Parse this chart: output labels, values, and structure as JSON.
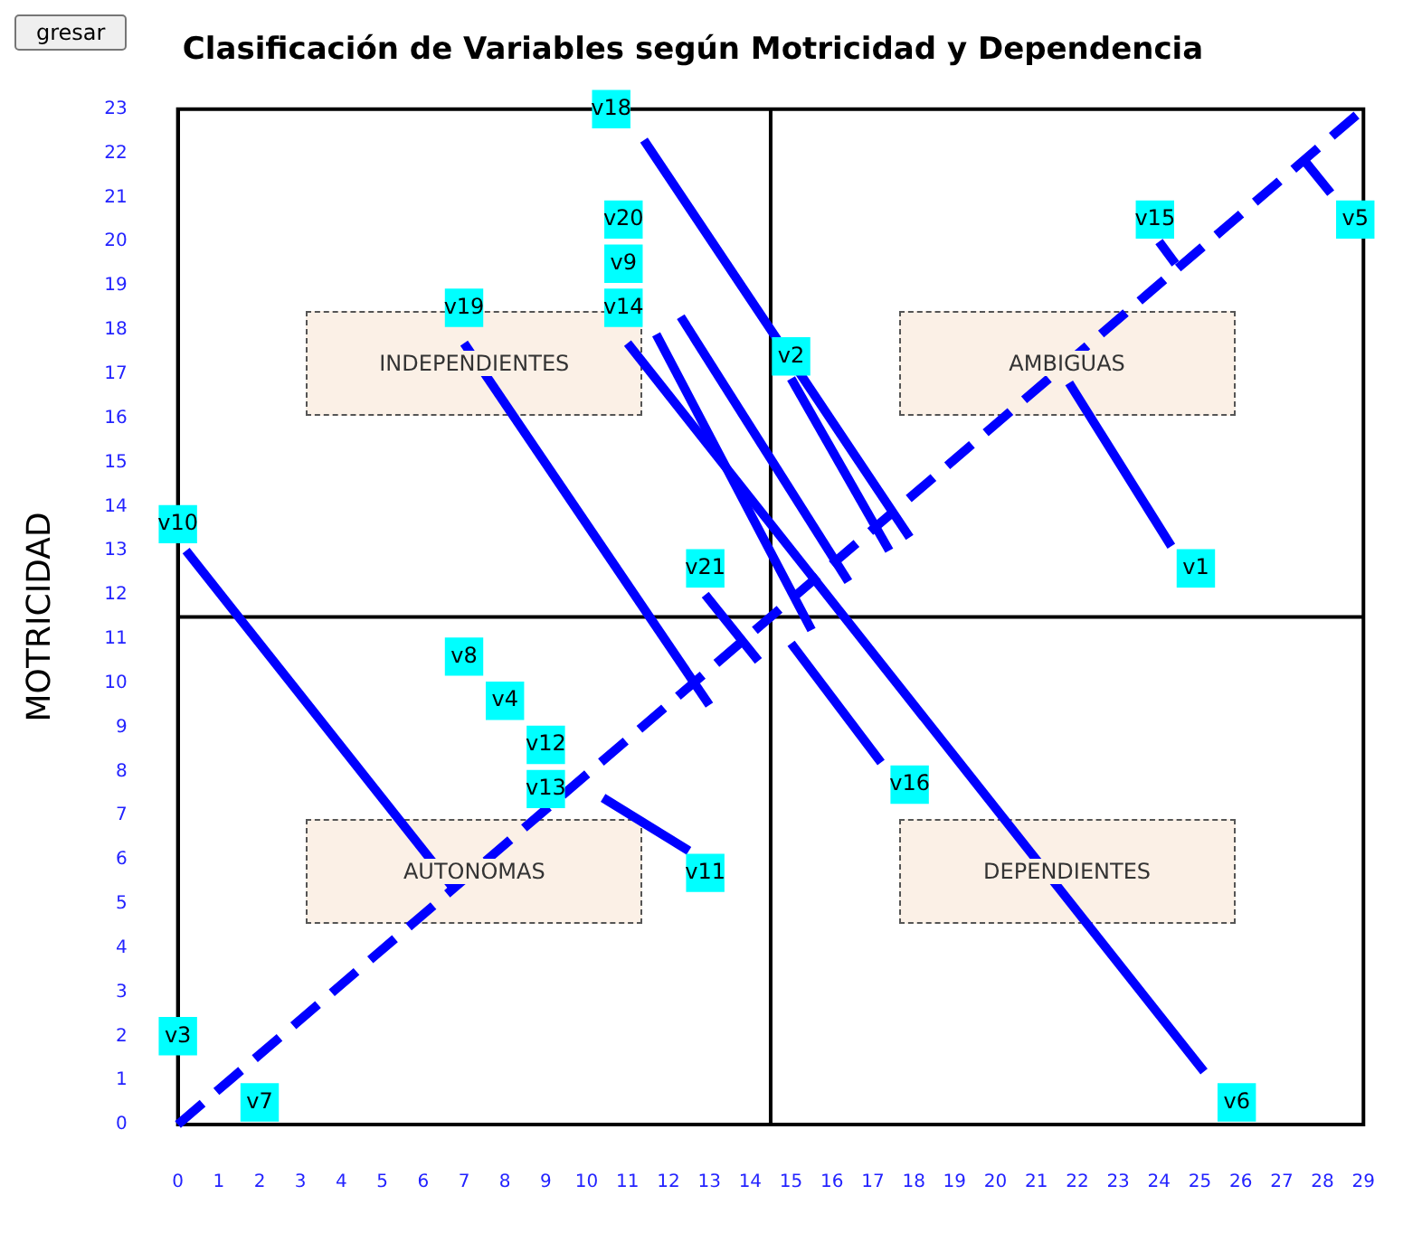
{
  "chart_data": {
    "type": "scatter",
    "title": "Clasificación de Variables según Motricidad y Dependencia",
    "ylabel": "MOTRICIDAD",
    "annotations": [
      "INDEPENDIENTES",
      "AMBIGUAS",
      "AUTONOMAS",
      "DEPENDIENTES",
      "gresar"
    ],
    "xlim": [
      0,
      29
    ],
    "xticks": [
      0,
      1,
      2,
      3,
      4,
      5,
      6,
      7,
      8,
      9,
      10,
      11,
      12,
      13,
      14,
      15,
      16,
      17,
      18,
      19,
      20,
      21,
      22,
      23,
      24,
      25,
      26,
      27,
      28,
      29
    ],
    "ylim": [
      0,
      23
    ],
    "yticks": [
      0,
      1,
      2,
      3,
      4,
      5,
      6,
      7,
      8,
      9,
      10,
      11,
      12,
      13,
      14,
      15,
      16,
      17,
      18,
      19,
      20,
      21,
      22,
      23
    ],
    "grid": false,
    "legend": false,
    "marker": "square",
    "ref_lines": [
      {
        "axis": "x",
        "value": 14.5,
        "color": "#000000"
      },
      {
        "axis": "y",
        "value": 11.5,
        "color": "#000000"
      }
    ],
    "series": [
      {
        "type": "line",
        "color": "#0000ff",
        "line_style": "dashed",
        "marker": "none",
        "x": [
          0,
          29
        ],
        "values": [
          0,
          23
        ]
      },
      {
        "type": "line",
        "color": "#0000ff",
        "line_style": "solid",
        "marker": "none",
        "x": [
          11.4,
          17.9
        ],
        "values": [
          22.3,
          13.3
        ]
      },
      {
        "type": "line",
        "color": "#0000ff",
        "line_style": "solid",
        "marker": "none",
        "x": [
          15,
          17.4
        ],
        "values": [
          16.9,
          13
        ]
      },
      {
        "type": "line",
        "color": "#0000ff",
        "line_style": "solid",
        "marker": "none",
        "x": [
          12.3,
          16.4
        ],
        "values": [
          18.3,
          12.3
        ]
      },
      {
        "type": "line",
        "color": "#0000ff",
        "line_style": "solid",
        "marker": "none",
        "x": [
          11.7,
          15.5
        ],
        "values": [
          17.9,
          11.2
        ]
      },
      {
        "type": "line",
        "color": "#0000ff",
        "line_style": "solid",
        "marker": "none",
        "x": [
          11,
          25.1
        ],
        "values": [
          17.7,
          1.2
        ]
      },
      {
        "type": "line",
        "color": "#0000ff",
        "line_style": "solid",
        "marker": "none",
        "x": [
          7,
          13
        ],
        "values": [
          17.7,
          9.5
        ]
      },
      {
        "type": "line",
        "color": "#0000ff",
        "line_style": "solid",
        "marker": "none",
        "x": [
          0.2,
          6.7
        ],
        "values": [
          13,
          5.4
        ]
      },
      {
        "type": "line",
        "color": "#0000ff",
        "line_style": "solid",
        "marker": "none",
        "x": [
          12.9,
          14.2
        ],
        "values": [
          12,
          10.5
        ]
      },
      {
        "type": "line",
        "color": "#0000ff",
        "line_style": "solid",
        "marker": "none",
        "x": [
          15,
          17.2
        ],
        "values": [
          10.9,
          8.2
        ]
      },
      {
        "type": "line",
        "color": "#0000ff",
        "line_style": "solid",
        "marker": "none",
        "x": [
          10.4,
          12.5
        ],
        "values": [
          7.4,
          6.2
        ]
      },
      {
        "type": "line",
        "color": "#0000ff",
        "line_style": "solid",
        "marker": "none",
        "x": [
          21.8,
          24.3
        ],
        "values": [
          16.8,
          13.1
        ]
      },
      {
        "type": "line",
        "color": "#0000ff",
        "line_style": "solid",
        "marker": "none",
        "x": [
          24,
          24.4
        ],
        "values": [
          20,
          19.5
        ]
      },
      {
        "type": "line",
        "color": "#0000ff",
        "line_style": "solid",
        "marker": "none",
        "x": [
          27.5,
          28.2
        ],
        "values": [
          21.9,
          21.1
        ]
      },
      {
        "color": "#00ffff",
        "x": [
          10.6,
          10.9,
          10.9,
          10.9,
          7,
          15,
          23.9,
          28.8,
          24.9,
          0,
          12.9,
          7,
          8,
          9,
          9,
          12.9,
          17.9,
          0,
          2,
          25.9
        ],
        "values": [
          23,
          20.5,
          19.5,
          18.5,
          18.5,
          17.4,
          20.5,
          20.5,
          12.6,
          13.6,
          12.6,
          10.6,
          9.6,
          8.6,
          7.6,
          5.7,
          7.7,
          2,
          0.5,
          0.5
        ],
        "value_labels": [
          "v18",
          "v20",
          "v9",
          "v14",
          "v19",
          "v2",
          "v15",
          "v5",
          "v1",
          "v10",
          "v21",
          "v8",
          "v4",
          "v12",
          "v13",
          "v11",
          "v16",
          "v3",
          "v7",
          "v6"
        ]
      }
    ]
  }
}
